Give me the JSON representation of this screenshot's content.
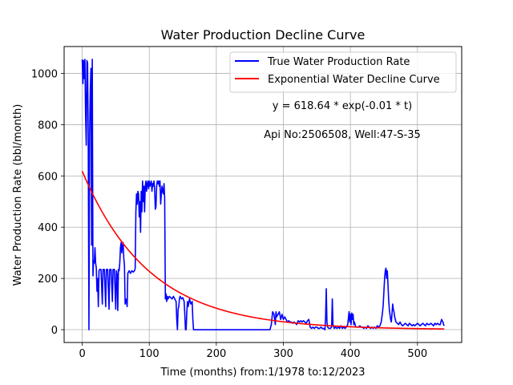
{
  "chart_data": {
    "type": "line",
    "title": "Water Production Decline Curve",
    "xlabel": "Time (months) from:1/1978 to:12/2023",
    "ylabel": "Water Production Rate (bbl/month)",
    "xlim": [
      -27,
      566
    ],
    "ylim": [
      -50,
      1105
    ],
    "xticks": [
      0,
      100,
      200,
      300,
      400,
      500
    ],
    "yticks": [
      0,
      200,
      400,
      600,
      800,
      1000
    ],
    "grid": true,
    "legend_placement": "top-right",
    "annotations": [
      "y = 618.64 * exp(-0.01 * t)",
      "Api No:2506508, Well:47-S-35"
    ],
    "series": [
      {
        "name": "True Water Production Rate",
        "color": "#0000ff",
        "points": [
          [
            0,
            1055
          ],
          [
            1,
            960
          ],
          [
            2,
            1050
          ],
          [
            3,
            980
          ],
          [
            4,
            1055
          ],
          [
            5,
            840
          ],
          [
            6,
            720
          ],
          [
            7,
            1050
          ],
          [
            8,
            1040
          ],
          [
            9,
            730
          ],
          [
            10,
            0
          ],
          [
            11,
            760
          ],
          [
            12,
            930
          ],
          [
            13,
            1020
          ],
          [
            14,
            330
          ],
          [
            15,
            1055
          ],
          [
            16,
            210
          ],
          [
            17,
            270
          ],
          [
            18,
            260
          ],
          [
            19,
            320
          ],
          [
            20,
            260
          ],
          [
            21,
            240
          ],
          [
            22,
            150
          ],
          [
            23,
            200
          ],
          [
            24,
            90
          ],
          [
            25,
            230
          ],
          [
            26,
            235
          ],
          [
            28,
            235
          ],
          [
            30,
            100
          ],
          [
            31,
            235
          ],
          [
            33,
            235
          ],
          [
            35,
            90
          ],
          [
            36,
            235
          ],
          [
            38,
            235
          ],
          [
            40,
            80
          ],
          [
            41,
            235
          ],
          [
            43,
            235
          ],
          [
            45,
            110
          ],
          [
            46,
            235
          ],
          [
            48,
            235
          ],
          [
            50,
            80
          ],
          [
            51,
            230
          ],
          [
            52,
            215
          ],
          [
            53,
            75
          ],
          [
            54,
            235
          ],
          [
            55,
            230
          ],
          [
            56,
            260
          ],
          [
            57,
            320
          ],
          [
            58,
            340
          ],
          [
            59,
            300
          ],
          [
            60,
            330
          ],
          [
            61,
            340
          ],
          [
            62,
            280
          ],
          [
            63,
            250
          ],
          [
            64,
            100
          ],
          [
            65,
            120
          ],
          [
            66,
            110
          ],
          [
            67,
            90
          ],
          [
            68,
            220
          ],
          [
            70,
            230
          ],
          [
            72,
            220
          ],
          [
            74,
            230
          ],
          [
            76,
            225
          ],
          [
            78,
            230
          ],
          [
            79,
            240
          ],
          [
            80,
            460
          ],
          [
            81,
            530
          ],
          [
            82,
            490
          ],
          [
            83,
            540
          ],
          [
            84,
            530
          ],
          [
            85,
            440
          ],
          [
            86,
            500
          ],
          [
            87,
            380
          ],
          [
            88,
            540
          ],
          [
            89,
            460
          ],
          [
            90,
            580
          ],
          [
            91,
            500
          ],
          [
            92,
            560
          ],
          [
            93,
            460
          ],
          [
            94,
            560
          ],
          [
            95,
            580
          ],
          [
            96,
            540
          ],
          [
            97,
            570
          ],
          [
            98,
            580
          ],
          [
            99,
            550
          ],
          [
            100,
            580
          ],
          [
            101,
            560
          ],
          [
            102,
            570
          ],
          [
            103,
            580
          ],
          [
            104,
            540
          ],
          [
            105,
            570
          ],
          [
            106,
            560
          ],
          [
            107,
            580
          ],
          [
            108,
            550
          ],
          [
            109,
            470
          ],
          [
            110,
            480
          ],
          [
            111,
            560
          ],
          [
            112,
            580
          ],
          [
            113,
            570
          ],
          [
            114,
            580
          ],
          [
            115,
            560
          ],
          [
            116,
            580
          ],
          [
            117,
            490
          ],
          [
            118,
            530
          ],
          [
            119,
            560
          ],
          [
            120,
            540
          ],
          [
            121,
            530
          ],
          [
            122,
            570
          ],
          [
            123,
            510
          ],
          [
            124,
            120
          ],
          [
            125,
            140
          ],
          [
            126,
            110
          ],
          [
            127,
            130
          ],
          [
            128,
            120
          ],
          [
            130,
            130
          ],
          [
            132,
            125
          ],
          [
            134,
            120
          ],
          [
            136,
            130
          ],
          [
            138,
            120
          ],
          [
            140,
            110
          ],
          [
            141,
            40
          ],
          [
            142,
            0
          ],
          [
            143,
            80
          ],
          [
            144,
            90
          ],
          [
            145,
            120
          ],
          [
            146,
            130
          ],
          [
            148,
            120
          ],
          [
            150,
            125
          ],
          [
            152,
            110
          ],
          [
            153,
            60
          ],
          [
            154,
            0
          ],
          [
            155,
            0
          ],
          [
            156,
            70
          ],
          [
            157,
            110
          ],
          [
            158,
            90
          ],
          [
            160,
            120
          ],
          [
            162,
            100
          ],
          [
            164,
            110
          ],
          [
            165,
            40
          ],
          [
            166,
            0
          ],
          [
            180,
            0
          ],
          [
            200,
            0
          ],
          [
            220,
            0
          ],
          [
            240,
            0
          ],
          [
            260,
            0
          ],
          [
            280,
            0
          ],
          [
            282,
            20
          ],
          [
            284,
            70
          ],
          [
            286,
            60
          ],
          [
            288,
            20
          ],
          [
            289,
            70
          ],
          [
            290,
            50
          ],
          [
            292,
            60
          ],
          [
            294,
            70
          ],
          [
            296,
            40
          ],
          [
            298,
            60
          ],
          [
            300,
            40
          ],
          [
            302,
            50
          ],
          [
            304,
            40
          ],
          [
            306,
            30
          ],
          [
            308,
            35
          ],
          [
            310,
            30
          ],
          [
            312,
            30
          ],
          [
            314,
            25
          ],
          [
            316,
            30
          ],
          [
            318,
            25
          ],
          [
            320,
            20
          ],
          [
            322,
            35
          ],
          [
            324,
            30
          ],
          [
            326,
            35
          ],
          [
            328,
            30
          ],
          [
            330,
            35
          ],
          [
            332,
            30
          ],
          [
            334,
            25
          ],
          [
            336,
            35
          ],
          [
            338,
            40
          ],
          [
            340,
            10
          ],
          [
            342,
            5
          ],
          [
            344,
            10
          ],
          [
            346,
            5
          ],
          [
            348,
            10
          ],
          [
            350,
            10
          ],
          [
            352,
            5
          ],
          [
            354,
            5
          ],
          [
            356,
            10
          ],
          [
            358,
            5
          ],
          [
            360,
            5
          ],
          [
            362,
            0
          ],
          [
            363,
            50
          ],
          [
            364,
            160
          ],
          [
            365,
            30
          ],
          [
            366,
            10
          ],
          [
            368,
            5
          ],
          [
            370,
            5
          ],
          [
            372,
            10
          ],
          [
            373,
            120
          ],
          [
            374,
            20
          ],
          [
            376,
            5
          ],
          [
            378,
            10
          ],
          [
            380,
            5
          ],
          [
            382,
            10
          ],
          [
            384,
            5
          ],
          [
            386,
            15
          ],
          [
            388,
            5
          ],
          [
            390,
            10
          ],
          [
            392,
            5
          ],
          [
            394,
            10
          ],
          [
            396,
            20
          ],
          [
            397,
            45
          ],
          [
            398,
            70
          ],
          [
            399,
            30
          ],
          [
            400,
            60
          ],
          [
            401,
            20
          ],
          [
            402,
            65
          ],
          [
            403,
            40
          ],
          [
            404,
            60
          ],
          [
            405,
            20
          ],
          [
            406,
            30
          ],
          [
            408,
            10
          ],
          [
            410,
            10
          ],
          [
            412,
            10
          ],
          [
            414,
            15
          ],
          [
            416,
            10
          ],
          [
            418,
            10
          ],
          [
            420,
            5
          ],
          [
            422,
            10
          ],
          [
            424,
            5
          ],
          [
            426,
            15
          ],
          [
            428,
            10
          ],
          [
            430,
            5
          ],
          [
            432,
            10
          ],
          [
            434,
            5
          ],
          [
            436,
            10
          ],
          [
            438,
            5
          ],
          [
            440,
            15
          ],
          [
            442,
            10
          ],
          [
            444,
            15
          ],
          [
            446,
            30
          ],
          [
            448,
            70
          ],
          [
            449,
            100
          ],
          [
            450,
            150
          ],
          [
            451,
            200
          ],
          [
            452,
            230
          ],
          [
            453,
            240
          ],
          [
            454,
            200
          ],
          [
            455,
            230
          ],
          [
            456,
            180
          ],
          [
            457,
            120
          ],
          [
            458,
            80
          ],
          [
            459,
            60
          ],
          [
            460,
            40
          ],
          [
            461,
            30
          ],
          [
            462,
            60
          ],
          [
            463,
            100
          ],
          [
            464,
            80
          ],
          [
            465,
            70
          ],
          [
            466,
            50
          ],
          [
            467,
            40
          ],
          [
            468,
            30
          ],
          [
            470,
            25
          ],
          [
            472,
            20
          ],
          [
            474,
            30
          ],
          [
            476,
            20
          ],
          [
            478,
            15
          ],
          [
            480,
            20
          ],
          [
            482,
            25
          ],
          [
            484,
            20
          ],
          [
            486,
            15
          ],
          [
            488,
            25
          ],
          [
            490,
            20
          ],
          [
            492,
            15
          ],
          [
            494,
            20
          ],
          [
            496,
            15
          ],
          [
            498,
            20
          ],
          [
            500,
            25
          ],
          [
            502,
            20
          ],
          [
            504,
            15
          ],
          [
            506,
            20
          ],
          [
            508,
            25
          ],
          [
            510,
            20
          ],
          [
            512,
            15
          ],
          [
            514,
            25
          ],
          [
            516,
            20
          ],
          [
            518,
            20
          ],
          [
            520,
            25
          ],
          [
            522,
            20
          ],
          [
            524,
            15
          ],
          [
            526,
            25
          ],
          [
            528,
            20
          ],
          [
            530,
            25
          ],
          [
            532,
            20
          ],
          [
            534,
            20
          ],
          [
            536,
            40
          ],
          [
            537,
            35
          ],
          [
            538,
            30
          ],
          [
            539,
            20
          ],
          [
            540,
            15
          ]
        ]
      },
      {
        "name": "Exponential Water Decline Curve",
        "color": "#ff0000",
        "equation": {
          "a": 618.64,
          "b": 0.01,
          "t_start": 0,
          "t_end": 540
        }
      }
    ]
  }
}
